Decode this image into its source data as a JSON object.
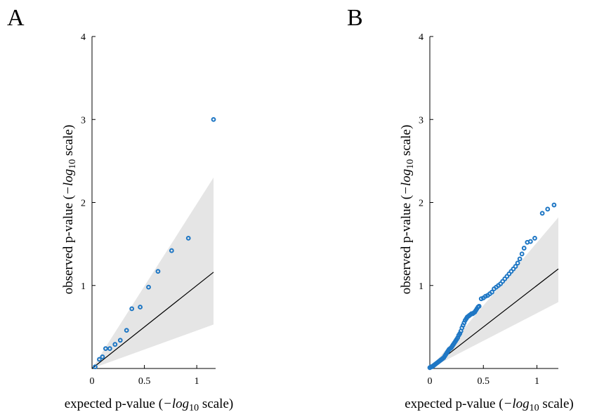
{
  "chart_data": [
    {
      "type": "scatter",
      "panel_label": "A",
      "xlabel_main": "expected p-value (",
      "xlabel_func": "−log",
      "xlabel_sub": "10",
      "xlabel_tail": " scale)",
      "ylabel_main": "observed p-value (",
      "ylabel_func": "−log",
      "ylabel_sub": "10",
      "ylabel_tail": " scale)",
      "xlim": [
        0,
        1.18
      ],
      "ylim": [
        0,
        4
      ],
      "x_ticks": [
        0,
        0.5,
        1
      ],
      "x_tick_labels": [
        "0",
        "0.5",
        "1"
      ],
      "y_ticks": [
        1,
        2,
        3,
        4
      ],
      "y_tick_labels": [
        "1",
        "2",
        "3",
        "4"
      ],
      "grid": false,
      "reference_line": {
        "x": [
          0,
          1.16
        ],
        "y": [
          0,
          1.16
        ]
      },
      "confidence_band": {
        "x": [
          0,
          1.16
        ],
        "upper": [
          0,
          2.3
        ],
        "lower": [
          0,
          0.53
        ]
      },
      "series": [
        {
          "x": [
            0.03,
            0.07,
            0.1,
            0.13,
            0.17,
            0.22,
            0.27,
            0.33,
            0.38,
            0.46,
            0.54,
            0.63,
            0.76,
            0.92,
            1.16
          ],
          "y": [
            0.02,
            0.11,
            0.14,
            0.24,
            0.24,
            0.29,
            0.34,
            0.46,
            0.72,
            0.74,
            0.98,
            1.17,
            1.42,
            1.57,
            3.0
          ]
        }
      ]
    },
    {
      "type": "scatter",
      "panel_label": "B",
      "xlabel_main": "expected p-value (",
      "xlabel_func": "−log",
      "xlabel_sub": "10",
      "xlabel_tail": " scale)",
      "ylabel_main": "observed p-value (",
      "ylabel_func": "−log",
      "ylabel_sub": "10",
      "ylabel_tail": " scale)",
      "xlim": [
        0,
        1.2
      ],
      "ylim": [
        0,
        4
      ],
      "x_ticks": [
        0,
        0.5,
        1
      ],
      "x_tick_labels": [
        "0",
        "0.5",
        "1"
      ],
      "y_ticks": [
        1,
        2,
        3,
        4
      ],
      "y_tick_labels": [
        "1",
        "2",
        "3",
        "4"
      ],
      "grid": false,
      "reference_line": {
        "x": [
          0,
          1.2
        ],
        "y": [
          0,
          1.2
        ]
      },
      "confidence_band": {
        "x": [
          0,
          1.2
        ],
        "upper": [
          0,
          1.82
        ],
        "lower": [
          0,
          0.8
        ]
      },
      "series": [
        {
          "x": [
            0.0,
            0.01,
            0.02,
            0.03,
            0.04,
            0.05,
            0.06,
            0.07,
            0.08,
            0.09,
            0.1,
            0.11,
            0.12,
            0.13,
            0.14,
            0.15,
            0.16,
            0.17,
            0.18,
            0.19,
            0.2,
            0.21,
            0.22,
            0.23,
            0.24,
            0.25,
            0.26,
            0.27,
            0.28,
            0.29,
            0.3,
            0.31,
            0.32,
            0.33,
            0.34,
            0.35,
            0.36,
            0.37,
            0.38,
            0.39,
            0.4,
            0.41,
            0.42,
            0.43,
            0.44,
            0.45,
            0.46,
            0.48,
            0.5,
            0.52,
            0.54,
            0.56,
            0.58,
            0.6,
            0.62,
            0.64,
            0.66,
            0.68,
            0.7,
            0.72,
            0.74,
            0.76,
            0.78,
            0.8,
            0.82,
            0.84,
            0.86,
            0.88,
            0.91,
            0.94,
            0.98,
            1.05,
            1.1,
            1.16
          ],
          "y": [
            0.01,
            0.02,
            0.02,
            0.03,
            0.04,
            0.05,
            0.06,
            0.07,
            0.08,
            0.09,
            0.1,
            0.11,
            0.12,
            0.13,
            0.15,
            0.17,
            0.19,
            0.21,
            0.23,
            0.24,
            0.25,
            0.27,
            0.29,
            0.31,
            0.33,
            0.35,
            0.37,
            0.4,
            0.42,
            0.45,
            0.49,
            0.52,
            0.55,
            0.58,
            0.6,
            0.62,
            0.63,
            0.64,
            0.65,
            0.66,
            0.66,
            0.67,
            0.68,
            0.7,
            0.72,
            0.74,
            0.75,
            0.84,
            0.85,
            0.87,
            0.88,
            0.9,
            0.92,
            0.96,
            0.98,
            1.0,
            1.02,
            1.05,
            1.08,
            1.11,
            1.14,
            1.17,
            1.2,
            1.23,
            1.27,
            1.32,
            1.38,
            1.45,
            1.52,
            1.53,
            1.57,
            1.87,
            1.92,
            1.97
          ]
        }
      ]
    }
  ]
}
